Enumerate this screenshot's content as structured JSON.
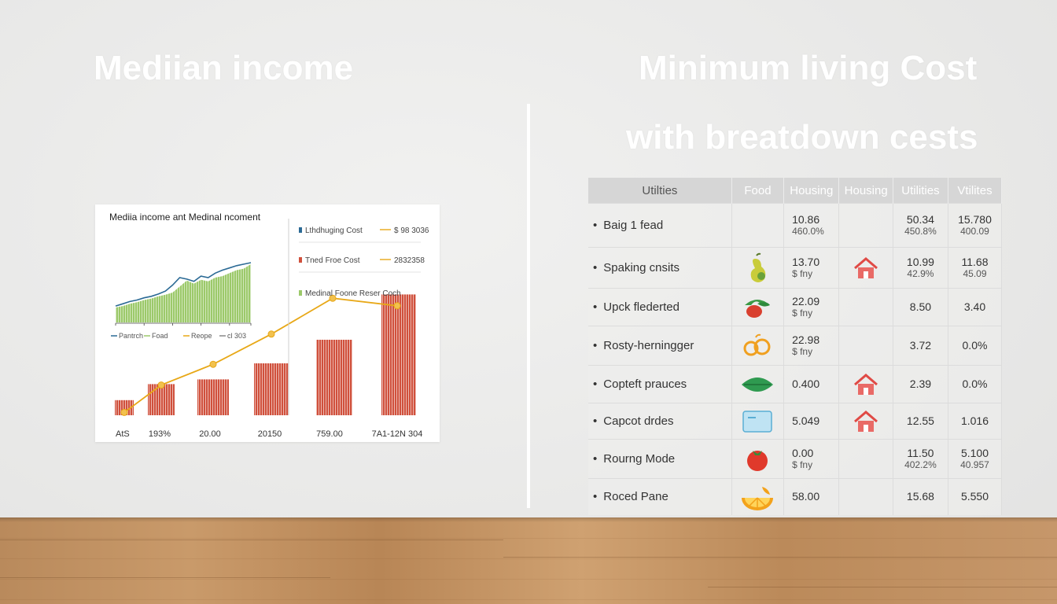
{
  "headings": {
    "left": "Mediian income",
    "right_line1": "Minimum living Cost",
    "right_line2": "with breatdown cests"
  },
  "chart_data": [
    {
      "type": "area",
      "title": "Mediia income ant Medinal ncoment",
      "x": [
        1,
        2,
        3,
        4,
        5,
        6,
        7,
        8,
        9,
        10,
        11,
        12,
        13,
        14,
        15,
        16,
        17,
        18,
        19,
        20
      ],
      "series": [
        {
          "name": "Food",
          "color": "#9cc96a",
          "values": [
            20,
            22,
            25,
            27,
            30,
            32,
            35,
            37,
            40,
            48,
            56,
            52,
            57,
            55,
            60,
            62,
            66,
            70,
            72,
            78
          ]
        },
        {
          "name": "Pantrch",
          "color": "#2b6a95",
          "values": [
            22,
            25,
            28,
            30,
            33,
            35,
            38,
            42,
            50,
            60,
            58,
            55,
            62,
            60,
            66,
            70,
            73,
            76,
            78,
            80
          ]
        }
      ],
      "legend_text": [
        "Pantrch",
        "Foad",
        "Reope",
        "cl 303"
      ]
    },
    {
      "type": "bar",
      "categories": [
        "AtS",
        "193%",
        "20.00",
        "20150",
        "759.00",
        "7A1-12N 304"
      ],
      "series": [
        {
          "name": "Tned Froe Cost",
          "color": "#d0503c",
          "values": [
            16,
            33,
            38,
            55,
            80,
            128
          ]
        },
        {
          "name": "Lthdhuging Cost",
          "color": "#e8a817",
          "values": [
            3,
            32,
            54,
            86,
            124,
            116
          ]
        }
      ],
      "ylim": [
        0,
        140
      ]
    }
  ],
  "legend": [
    {
      "label": "Lthdhuging Cost",
      "value": "$ 98 3036",
      "color": "#2b6a95",
      "linecolor": "#e8a817"
    },
    {
      "label": "Tned Froe Cost",
      "value": "2832358",
      "color": "#d0503c",
      "linecolor": "#e8a817"
    },
    {
      "label": "Medinal Foone Reser Coch",
      "value": "",
      "color": "#9cc96a",
      "linecolor": ""
    }
  ],
  "table": {
    "headers": [
      "Utilties",
      "Food",
      "Housing",
      "Housing",
      "Utilities",
      "Vtilites"
    ],
    "rows": [
      {
        "name": "Baig 1 fead",
        "icon": "",
        "food": {
          "v": "10.86",
          "s": "460.0%"
        },
        "house_icon": "",
        "u1": {
          "v": "50.34",
          "s": "450.8%"
        },
        "u2": {
          "v": "15.780",
          "s": "400.09"
        }
      },
      {
        "name": "Spaking cnsits",
        "icon": "pear-icon",
        "food": {
          "v": "13.70",
          "s": "$ fny"
        },
        "house_icon": "house-icon",
        "u1": {
          "v": "10.99",
          "s": "42.9%"
        },
        "u2": {
          "v": "11.68",
          "s": "45.09"
        }
      },
      {
        "name": "Upck flederted",
        "icon": "vegetable-icon",
        "food": {
          "v": "22.09",
          "s": "$ fny"
        },
        "house_icon": "",
        "u1": {
          "v": "8.50",
          "s": ""
        },
        "u2": {
          "v": "3.40",
          "s": ""
        }
      },
      {
        "name": "Rosty-herningger",
        "icon": "fruit-icon",
        "food": {
          "v": "22.98",
          "s": "$ fny"
        },
        "house_icon": "",
        "u1": {
          "v": "3.72",
          "s": ""
        },
        "u2": {
          "v": "0.0%",
          "s": ""
        }
      },
      {
        "name": "Copteft prauces",
        "icon": "leaf-icon",
        "food": {
          "v": "0.400",
          "s": ""
        },
        "house_icon": "house-icon",
        "u1": {
          "v": "2.39",
          "s": ""
        },
        "u2": {
          "v": "0.0%",
          "s": ""
        }
      },
      {
        "name": "Capcot drdes",
        "icon": "card-icon",
        "food": {
          "v": "5.049",
          "s": ""
        },
        "house_icon": "house-icon",
        "u1": {
          "v": "12.55",
          "s": ""
        },
        "u2": {
          "v": "1.016",
          "s": ""
        }
      },
      {
        "name": "Rourng Mode",
        "icon": "tomato-icon",
        "food": {
          "v": "0.00",
          "s": "$ fny"
        },
        "house_icon": "",
        "u1": {
          "v": "11.50",
          "s": "402.2%"
        },
        "u2": {
          "v": "5.100",
          "s": "40.957"
        }
      },
      {
        "name": "Roced Pane",
        "icon": "orange-icon",
        "food": {
          "v": "58.00",
          "s": ""
        },
        "house_icon": "",
        "u1": {
          "v": "15.68",
          "s": ""
        },
        "u2": {
          "v": "5.550",
          "s": ""
        }
      }
    ]
  },
  "colors": {
    "header": "#d6d6d6",
    "red": "#d0503c",
    "gold": "#e8a817",
    "green": "#9cc96a",
    "navy": "#2b6a95"
  }
}
